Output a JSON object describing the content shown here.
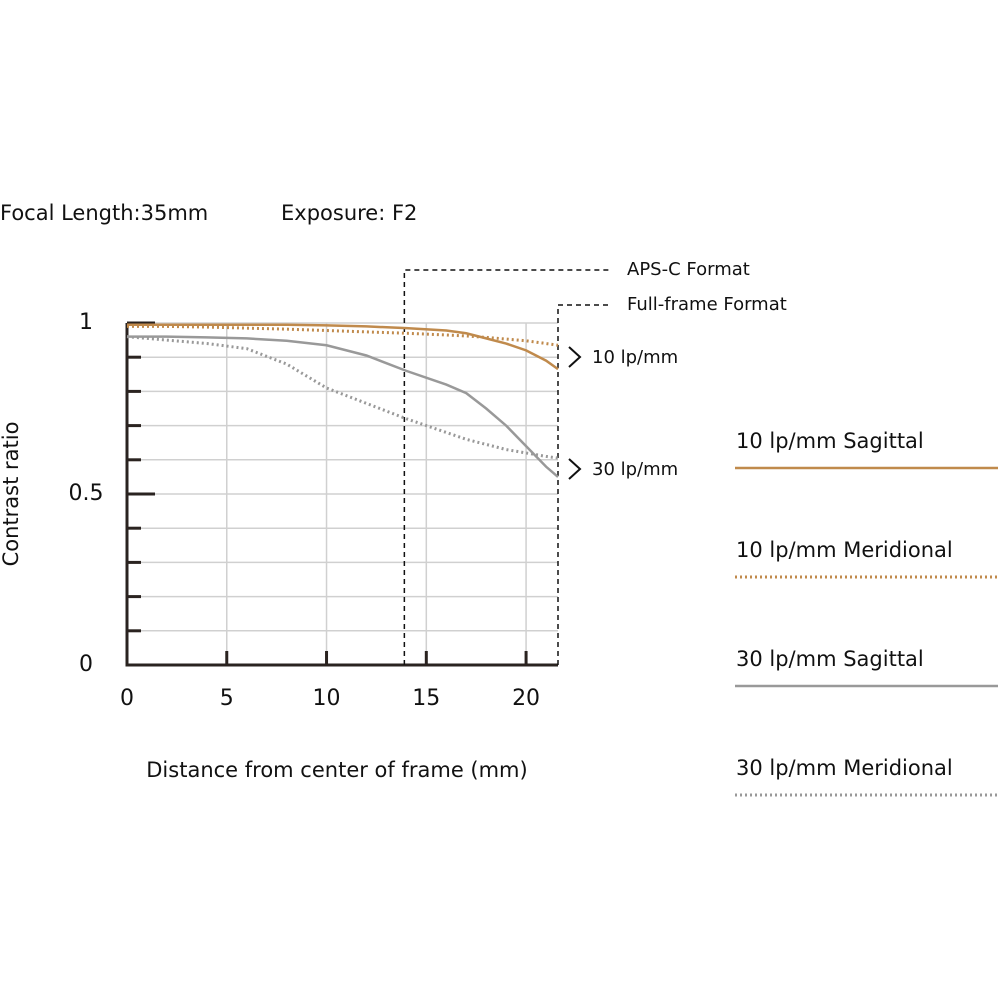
{
  "chart_data": {
    "type": "line",
    "title": "Focal Length:35mm",
    "subtitle": "Exposure: F2",
    "x_label": "Distance from center of frame (mm)",
    "y_label": "Contrast ratio",
    "x": [
      0,
      2,
      4,
      6,
      8,
      10,
      12,
      14,
      16,
      17,
      18,
      19,
      20,
      21,
      21.6
    ],
    "series": [
      {
        "name": "10 lp/mm Sagittal",
        "color": "#c08a4c",
        "style": "solid",
        "values": [
          0.995,
          0.995,
          0.995,
          0.995,
          0.995,
          0.993,
          0.99,
          0.985,
          0.978,
          0.97,
          0.955,
          0.94,
          0.92,
          0.89,
          0.865
        ]
      },
      {
        "name": "10 lp/mm Meridional",
        "color": "#c08a4c",
        "style": "dotted",
        "values": [
          0.99,
          0.99,
          0.988,
          0.985,
          0.982,
          0.978,
          0.974,
          0.97,
          0.965,
          0.962,
          0.958,
          0.953,
          0.948,
          0.94,
          0.935
        ]
      },
      {
        "name": "30 lp/mm Sagittal",
        "color": "#999999",
        "style": "solid",
        "values": [
          0.96,
          0.96,
          0.958,
          0.955,
          0.948,
          0.935,
          0.905,
          0.86,
          0.82,
          0.795,
          0.75,
          0.7,
          0.64,
          0.58,
          0.55
        ]
      },
      {
        "name": "30 lp/mm Meridional",
        "color": "#999999",
        "style": "dotted",
        "values": [
          0.96,
          0.95,
          0.94,
          0.925,
          0.88,
          0.81,
          0.765,
          0.72,
          0.68,
          0.66,
          0.645,
          0.63,
          0.62,
          0.61,
          0.605
        ]
      }
    ],
    "xlim": [
      0,
      21.6
    ],
    "ylim": [
      0,
      1
    ],
    "xticks": [
      0,
      5,
      10,
      15,
      20
    ],
    "yticks": [
      0,
      0.5,
      1
    ],
    "yminorticks": [
      0.1,
      0.2,
      0.3,
      0.4,
      0.6,
      0.7,
      0.8,
      0.9
    ],
    "grid": true,
    "format_markers": [
      {
        "label": "APS-C Format",
        "x": 13.9
      },
      {
        "label": "Full-frame Format",
        "x": 21.6
      }
    ],
    "annotations": [
      "10 lp/mm",
      "30 lp/mm"
    ]
  }
}
